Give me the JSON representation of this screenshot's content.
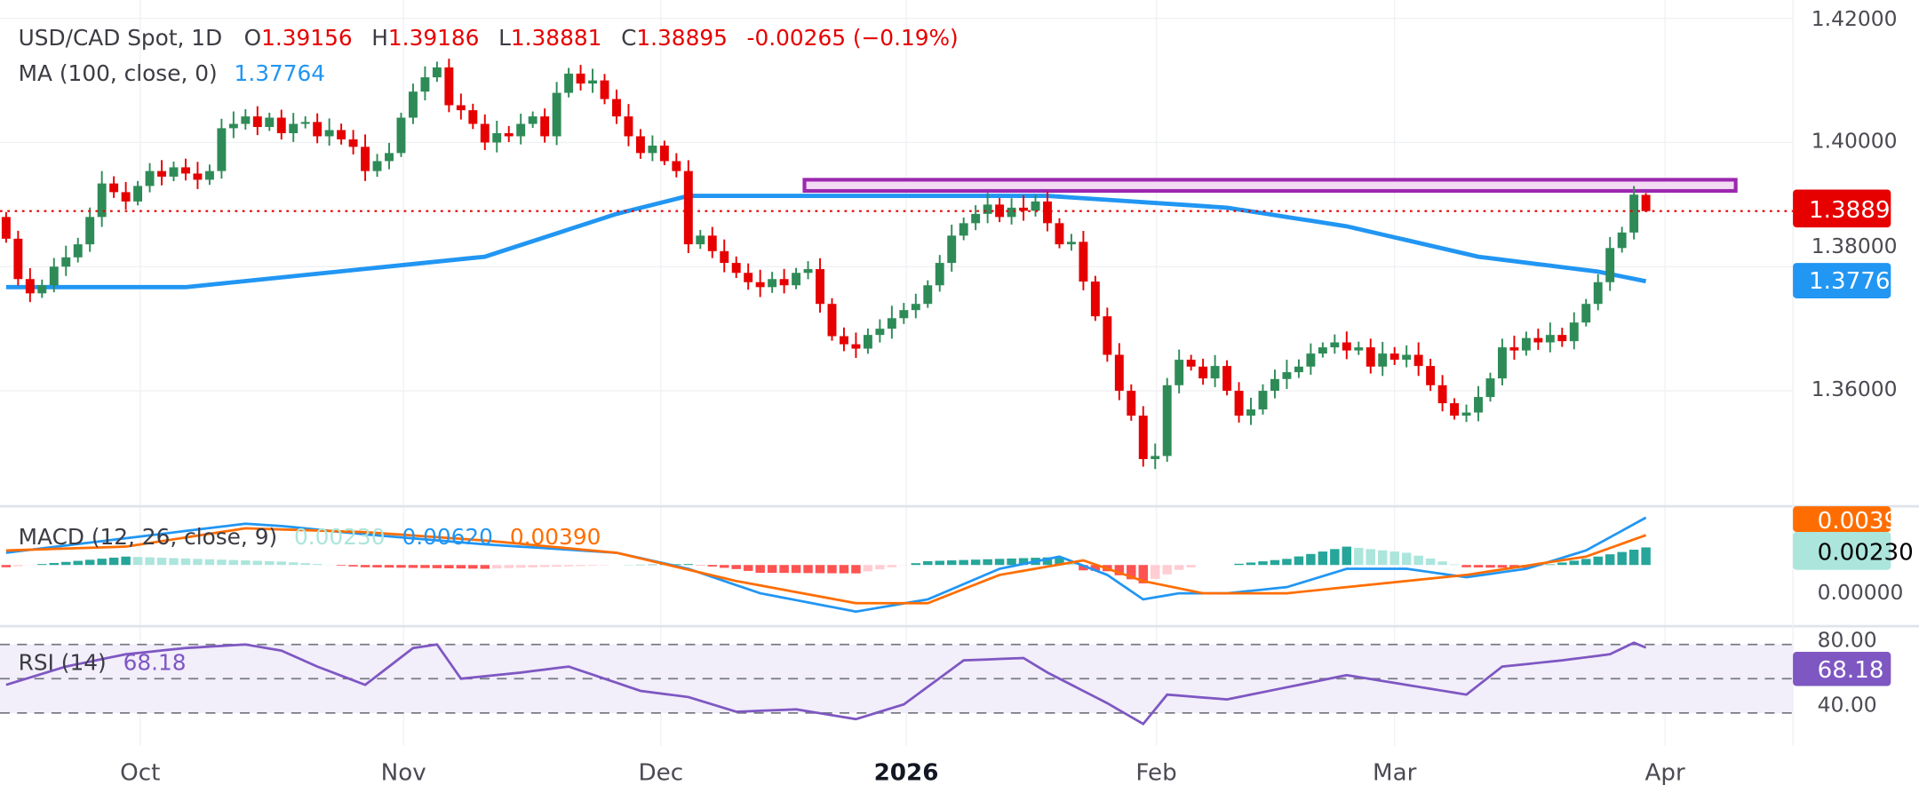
{
  "header": {
    "symbol": "USD/CAD Spot, 1D",
    "o_label": "O",
    "o_value": "1.39156",
    "h_label": "H",
    "h_value": "1.39186",
    "l_label": "L",
    "l_value": "1.38881",
    "c_label": "C",
    "c_value": "1.38895",
    "change": "-0.00265 (−0.19%)",
    "ma_label": "MA (100, close, 0)",
    "ma_value": "1.37764"
  },
  "macd_legend": {
    "label": "MACD (12, 26, close, 9)",
    "hist": "0.00230",
    "macd": "0.00620",
    "signal": "0.00390"
  },
  "rsi_legend": {
    "label": "RSI (14)",
    "value": "68.18"
  },
  "price_axis": [
    "1.42000",
    "1.40000",
    "1.38000",
    "1.36000"
  ],
  "price_badges": {
    "last": "1.38895",
    "ma": "1.37764"
  },
  "macd_axis": {
    "zero": "0.00000",
    "signal_badge": "0.00390",
    "hist_badge": "0.00230"
  },
  "rsi_axis": {
    "upper": "80.00",
    "lower": "40.00",
    "badge": "68.18"
  },
  "time_axis": [
    {
      "label": "Oct",
      "bar": 11.2
    },
    {
      "label": "Nov",
      "bar": 33.2
    },
    {
      "label": "Dec",
      "bar": 54.7
    },
    {
      "label": "2026",
      "bar": 75.2,
      "bold": true
    },
    {
      "label": "Feb",
      "bar": 96.1
    },
    {
      "label": "Mar",
      "bar": 116
    },
    {
      "label": "Apr",
      "bar": 138.6
    }
  ],
  "colors": {
    "up": "#2e8b57",
    "down": "#e60000",
    "ma": "#2196f3",
    "zone": "#9c27b0",
    "macd": "#2196f3",
    "signal": "#ff6d00",
    "rsi": "#7e57c2",
    "hist_up_strong": "#26a69a",
    "hist_up_weak": "#ace5dc",
    "hist_down_strong": "#ff5252",
    "hist_down_weak": "#ffcdd2"
  },
  "chart_data": {
    "type": "candlestick",
    "title": "USD/CAD Spot, 1D",
    "ylim": [
      1.34,
      1.42
    ],
    "first_open": 1.388,
    "last_bar": {
      "open": 1.39156,
      "high": 1.39186,
      "low": 1.38881,
      "close": 1.38895
    },
    "closes": [
      1.3845,
      1.378,
      1.3757,
      1.377,
      1.38,
      1.3815,
      1.3836,
      1.388,
      1.3934,
      1.392,
      1.3905,
      1.393,
      1.3954,
      1.3945,
      1.396,
      1.395,
      1.394,
      1.3954,
      1.4023,
      1.403,
      1.4042,
      1.4025,
      1.404,
      1.4015,
      1.403,
      1.4033,
      1.401,
      1.402,
      1.4005,
      1.3993,
      1.3954,
      1.397,
      1.3983,
      1.404,
      1.4082,
      1.4105,
      1.4121,
      1.406,
      1.4052,
      1.403,
      1.4,
      1.4015,
      1.401,
      1.403,
      1.4042,
      1.401,
      1.408,
      1.4111,
      1.4095,
      1.41,
      1.407,
      1.4042,
      1.401,
      1.3983,
      1.3995,
      1.397,
      1.3954,
      1.3836,
      1.385,
      1.3825,
      1.3806,
      1.379,
      1.3775,
      1.3767,
      1.378,
      1.377,
      1.379,
      1.3796,
      1.374,
      1.3688,
      1.3675,
      1.3668,
      1.369,
      1.37,
      1.3717,
      1.373,
      1.374,
      1.377,
      1.3806,
      1.385,
      1.387,
      1.3885,
      1.39,
      1.388,
      1.3895,
      1.389,
      1.3905,
      1.387,
      1.3836,
      1.384,
      1.3776,
      1.372,
      1.3658,
      1.36,
      1.356,
      1.349,
      1.3495,
      1.3609,
      1.365,
      1.3639,
      1.362,
      1.364,
      1.36,
      1.356,
      1.357,
      1.36,
      1.3619,
      1.363,
      1.3639,
      1.366,
      1.367,
      1.3678,
      1.3665,
      1.367,
      1.3639,
      1.366,
      1.365,
      1.3658,
      1.364,
      1.3609,
      1.358,
      1.356,
      1.3565,
      1.359,
      1.362,
      1.367,
      1.3665,
      1.3685,
      1.3678,
      1.369,
      1.368,
      1.371,
      1.374,
      1.3775,
      1.383,
      1.3855,
      1.3916,
      1.38895
    ],
    "ma_100": [
      [
        0,
        1.3767
      ],
      [
        15,
        1.3767
      ],
      [
        40,
        1.3816
      ],
      [
        51,
        1.3885
      ],
      [
        57,
        1.3914
      ],
      [
        87,
        1.3914
      ],
      [
        102,
        1.3895
      ],
      [
        112,
        1.3865
      ],
      [
        123,
        1.3816
      ],
      [
        133,
        1.3792
      ],
      [
        137,
        1.37764
      ]
    ],
    "resistance_zone": {
      "from_bar": 66.7,
      "to_bar": 144.5,
      "low": 1.3922,
      "high": 1.394
    },
    "last_price_line": 1.38895,
    "macd": {
      "ylim": [
        -0.0075,
        0.0085
      ],
      "macd_line": [
        [
          0,
          0.0016
        ],
        [
          10,
          0.0035
        ],
        [
          20,
          0.0054
        ],
        [
          23,
          0.0051
        ],
        [
          30,
          0.004
        ],
        [
          40,
          0.0027
        ],
        [
          51,
          0.0016
        ],
        [
          57,
          -0.0005
        ],
        [
          63,
          -0.0037
        ],
        [
          71,
          -0.0061
        ],
        [
          77,
          -0.0045
        ],
        [
          83,
          -0.0005
        ],
        [
          88,
          0.0011
        ],
        [
          92,
          -0.0013
        ],
        [
          95,
          -0.0045
        ],
        [
          98,
          -0.0037
        ],
        [
          102,
          -0.0037
        ],
        [
          107,
          -0.0029
        ],
        [
          112,
          -0.0005
        ],
        [
          117,
          -0.0005
        ],
        [
          122,
          -0.0016
        ],
        [
          127,
          -0.0005
        ],
        [
          132,
          0.0019
        ],
        [
          137,
          0.0062
        ]
      ],
      "signal_line": [
        [
          0,
          0.0019
        ],
        [
          10,
          0.0024
        ],
        [
          20,
          0.0048
        ],
        [
          30,
          0.0043
        ],
        [
          40,
          0.0032
        ],
        [
          51,
          0.0016
        ],
        [
          61,
          -0.0021
        ],
        [
          71,
          -0.005
        ],
        [
          77,
          -0.005
        ],
        [
          83,
          -0.0013
        ],
        [
          90,
          0.0006
        ],
        [
          95,
          -0.0021
        ],
        [
          100,
          -0.0037
        ],
        [
          107,
          -0.0037
        ],
        [
          117,
          -0.0021
        ],
        [
          122,
          -0.0013
        ],
        [
          132,
          0.0011
        ],
        [
          137,
          0.0039
        ]
      ]
    },
    "rsi": {
      "ylim": [
        10,
        85
      ],
      "levels": [
        70,
        50,
        30
      ],
      "values": [
        [
          0,
          46.4
        ],
        [
          5,
          57.1
        ],
        [
          10,
          64.3
        ],
        [
          15,
          67.9
        ],
        [
          20,
          70
        ],
        [
          23,
          66.4
        ],
        [
          26,
          57.1
        ],
        [
          30,
          46.4
        ],
        [
          34,
          67.9
        ],
        [
          36,
          70
        ],
        [
          38,
          50
        ],
        [
          43,
          53.6
        ],
        [
          47,
          57.1
        ],
        [
          53,
          42.9
        ],
        [
          57,
          39.3
        ],
        [
          61,
          30.7
        ],
        [
          66,
          32.1
        ],
        [
          71,
          26.4
        ],
        [
          75,
          35
        ],
        [
          80,
          60.7
        ],
        [
          85,
          62.1
        ],
        [
          87,
          53.6
        ],
        [
          92,
          35.7
        ],
        [
          95,
          23.6
        ],
        [
          97,
          40.7
        ],
        [
          102,
          37.9
        ],
        [
          108,
          46.4
        ],
        [
          112,
          52.1
        ],
        [
          117,
          46.4
        ],
        [
          122,
          40.7
        ],
        [
          125,
          57.1
        ],
        [
          130,
          60.7
        ],
        [
          134,
          64.3
        ],
        [
          136,
          71
        ],
        [
          137,
          68.18
        ]
      ]
    }
  }
}
